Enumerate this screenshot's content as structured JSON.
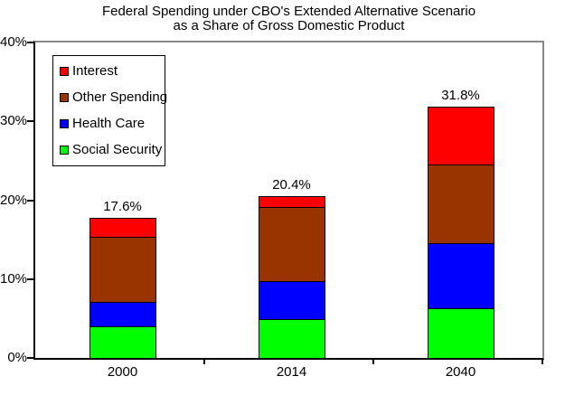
{
  "title": {
    "line1": "Federal Spending under CBO's Extended Alternative Scenario",
    "line2": "as a Share of Gross Domestic Product"
  },
  "chart_data": {
    "type": "bar",
    "stacked": true,
    "title": "Federal Spending under CBO's Extended Alternative Scenario as a Share of Gross Domestic Product",
    "xlabel": "",
    "ylabel": "",
    "categories": [
      "2000",
      "2014",
      "2040"
    ],
    "series": [
      {
        "name": "Social Security",
        "color": "#00FF00",
        "values": [
          4.0,
          4.9,
          6.3
        ]
      },
      {
        "name": "Health Care",
        "color": "#0000FF",
        "values": [
          3.1,
          4.8,
          8.3
        ]
      },
      {
        "name": "Other Spending",
        "color": "#993300",
        "values": [
          8.3,
          9.4,
          9.9
        ]
      },
      {
        "name": "Interest",
        "color": "#FF0000",
        "values": [
          2.2,
          1.3,
          7.3
        ]
      }
    ],
    "totals": [
      17.6,
      20.4,
      31.8
    ],
    "total_labels": [
      "17.6%",
      "20.4%",
      "31.8%"
    ],
    "ylim": [
      0,
      40
    ],
    "yticks": [
      {
        "label": "0%",
        "value": 0
      },
      {
        "label": "10%",
        "value": 10
      },
      {
        "label": "20%",
        "value": 20
      },
      {
        "label": "30%",
        "value": 30
      },
      {
        "label": "40%",
        "value": 40
      }
    ],
    "grid": false,
    "legend_position": "top-left",
    "legend_order": [
      "Interest",
      "Other Spending",
      "Health Care",
      "Social Security"
    ],
    "colors": {
      "axis": "#000000",
      "plot_border_gray": "#888888",
      "background": "#FFFFFF"
    }
  }
}
